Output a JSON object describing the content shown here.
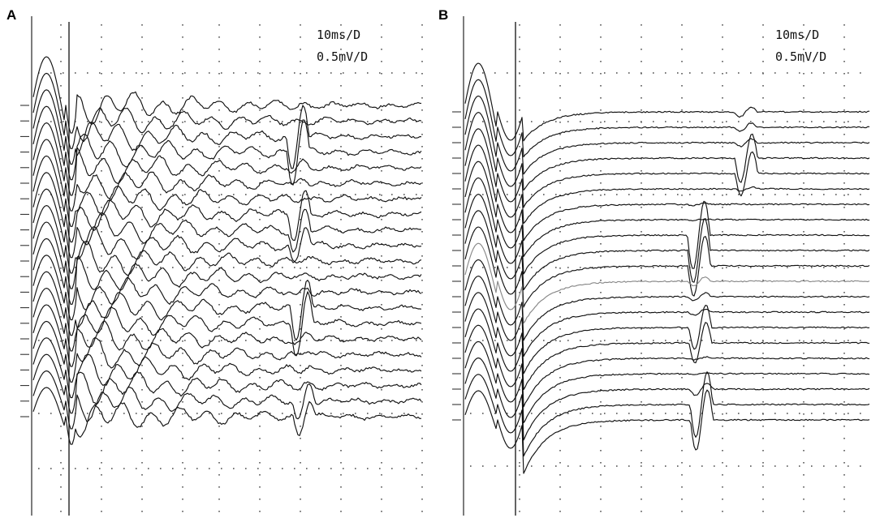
{
  "chart_data": [
    {
      "type": "line",
      "panel": "A",
      "sweep_settings": [
        "10ms/D",
        "0.5mV/D"
      ],
      "grid": true,
      "trace_count": 21,
      "divisions_x": 10,
      "description_values": {
        "early_wave_latency_ms": 3,
        "cursor_latency_ms": 10
      }
    },
    {
      "type": "line",
      "panel": "B",
      "sweep_settings": [
        "10ms/D",
        "0.5mV/D"
      ],
      "grid": true,
      "trace_count": 21,
      "divisions_x": 10,
      "description_values": {
        "early_wave_latency_ms": 3,
        "cursor_latency_ms": 10
      }
    }
  ]
}
